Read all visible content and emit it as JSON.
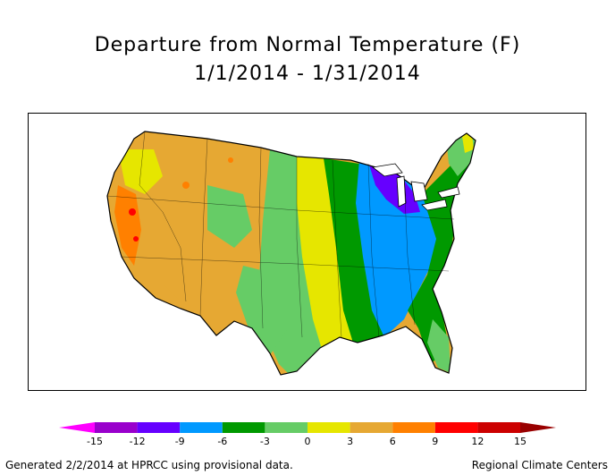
{
  "title_line1": "Departure from Normal Temperature (F)",
  "title_line2": "1/1/2014 - 1/31/2014",
  "legend": {
    "ticks": [
      "-15",
      "-12",
      "-9",
      "-6",
      "-3",
      "0",
      "3",
      "6",
      "9",
      "12",
      "15"
    ],
    "colors": [
      "#ff00ff",
      "#9900cc",
      "#6600ff",
      "#0099ff",
      "#009900",
      "#66cc66",
      "#e6e600",
      "#e6a833",
      "#ff8000",
      "#ff0000",
      "#cc0000",
      "#990000"
    ]
  },
  "footer_left": "Generated 2/2/2014 at HPRCC using provisional data.",
  "footer_right": "Regional Climate Centers"
}
